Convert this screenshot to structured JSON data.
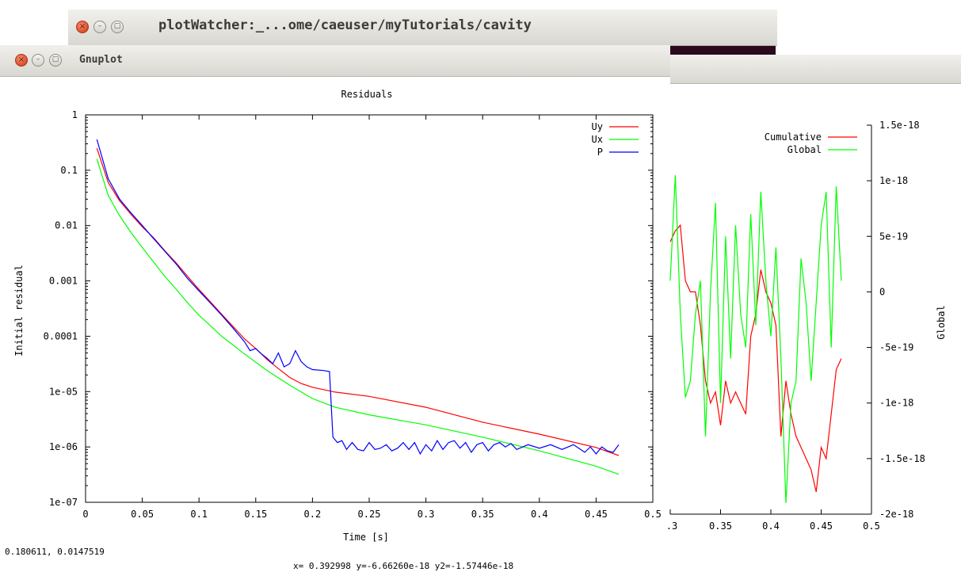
{
  "windows": {
    "back": {
      "title": "plotWatcher:_...ome/caeuser/myTutorials/cavity"
    },
    "front": {
      "title": "Gnuplot"
    }
  },
  "buttons": {
    "close": "×",
    "minimize": "–",
    "maximize": "▢"
  },
  "colors": {
    "series_red": "#ff0000",
    "series_green": "#00ff00",
    "series_blue": "#0000ff",
    "desktop": "#2b0a1e"
  },
  "status": {
    "mouse": "0.180611,  0.0147519",
    "coords": "x= 0.392998 y=-6.66260e-18 y2=-1.57446e-18"
  },
  "chart_data": [
    {
      "type": "line",
      "title": "Residuals",
      "xlabel": "Time [s]",
      "ylabel": "Initial residual",
      "yscale": "log",
      "xlim": [
        0,
        0.5
      ],
      "ylim": [
        1e-07,
        1
      ],
      "xticks": [
        "0",
        "0.05",
        "0.1",
        "0.15",
        "0.2",
        "0.25",
        "0.3",
        "0.35",
        "0.4",
        "0.45",
        "0.5"
      ],
      "yticks": [
        "1",
        "0.1",
        "0.01",
        "0.001",
        "0.0001",
        "1e-05",
        "1e-06",
        "1e-07"
      ],
      "legend_position": "top-right",
      "series": [
        {
          "name": "Uy",
          "color": "#ff0000",
          "points": [
            [
              0.01,
              0.25
            ],
            [
              0.02,
              0.06
            ],
            [
              0.03,
              0.028
            ],
            [
              0.04,
              0.016
            ],
            [
              0.05,
              0.0095
            ],
            [
              0.06,
              0.006
            ],
            [
              0.07,
              0.0035
            ],
            [
              0.08,
              0.0021
            ],
            [
              0.09,
              0.0012
            ],
            [
              0.1,
              0.0007
            ],
            [
              0.11,
              0.00042
            ],
            [
              0.12,
              0.00025
            ],
            [
              0.13,
              0.00015
            ],
            [
              0.14,
              9e-05
            ],
            [
              0.15,
              6e-05
            ],
            [
              0.16,
              3.8e-05
            ],
            [
              0.17,
              2.6e-05
            ],
            [
              0.18,
              1.8e-05
            ],
            [
              0.19,
              1.4e-05
            ],
            [
              0.2,
              1.2e-05
            ],
            [
              0.22,
              9.8e-06
            ],
            [
              0.25,
              8.2e-06
            ],
            [
              0.3,
              5.2e-06
            ],
            [
              0.35,
              2.8e-06
            ],
            [
              0.4,
              1.7e-06
            ],
            [
              0.45,
              9.8e-07
            ],
            [
              0.47,
              7e-07
            ]
          ]
        },
        {
          "name": "Ux",
          "color": "#00ff00",
          "points": [
            [
              0.01,
              0.16
            ],
            [
              0.02,
              0.035
            ],
            [
              0.03,
              0.015
            ],
            [
              0.04,
              0.0075
            ],
            [
              0.05,
              0.004
            ],
            [
              0.06,
              0.0022
            ],
            [
              0.07,
              0.0012
            ],
            [
              0.08,
              0.0007
            ],
            [
              0.09,
              0.0004
            ],
            [
              0.1,
              0.00024
            ],
            [
              0.12,
              0.0001
            ],
            [
              0.14,
              4.8e-05
            ],
            [
              0.16,
              2.4e-05
            ],
            [
              0.18,
              1.3e-05
            ],
            [
              0.2,
              7.5e-06
            ],
            [
              0.22,
              5.2e-06
            ],
            [
              0.25,
              3.8e-06
            ],
            [
              0.3,
              2.5e-06
            ],
            [
              0.35,
              1.5e-06
            ],
            [
              0.4,
              8.5e-07
            ],
            [
              0.45,
              4.5e-07
            ],
            [
              0.47,
              3.2e-07
            ]
          ]
        },
        {
          "name": "P",
          "color": "#0000ff",
          "points": [
            [
              0.01,
              0.36
            ],
            [
              0.02,
              0.07
            ],
            [
              0.03,
              0.03
            ],
            [
              0.04,
              0.017
            ],
            [
              0.05,
              0.01
            ],
            [
              0.06,
              0.0058
            ],
            [
              0.07,
              0.0034
            ],
            [
              0.08,
              0.002
            ],
            [
              0.09,
              0.0011
            ],
            [
              0.1,
              0.00066
            ],
            [
              0.11,
              0.0004
            ],
            [
              0.12,
              0.00024
            ],
            [
              0.13,
              0.00014
            ],
            [
              0.14,
              8e-05
            ],
            [
              0.145,
              5.5e-05
            ],
            [
              0.15,
              6e-05
            ],
            [
              0.155,
              4.8e-05
            ],
            [
              0.16,
              4e-05
            ],
            [
              0.165,
              3.2e-05
            ],
            [
              0.17,
              5e-05
            ],
            [
              0.175,
              2.8e-05
            ],
            [
              0.18,
              3.2e-05
            ],
            [
              0.185,
              5.5e-05
            ],
            [
              0.19,
              3.5e-05
            ],
            [
              0.195,
              2.8e-05
            ],
            [
              0.2,
              2.5e-05
            ],
            [
              0.21,
              2.4e-05
            ],
            [
              0.215,
              2.3e-05
            ],
            [
              0.218,
              1.5e-06
            ],
            [
              0.222,
              1.2e-06
            ],
            [
              0.226,
              1.3e-06
            ],
            [
              0.23,
              9e-07
            ],
            [
              0.235,
              1.2e-06
            ],
            [
              0.24,
              9e-07
            ],
            [
              0.245,
              8.5e-07
            ],
            [
              0.25,
              1.2e-06
            ],
            [
              0.255,
              9e-07
            ],
            [
              0.26,
              9.5e-07
            ],
            [
              0.265,
              1.1e-06
            ],
            [
              0.27,
              8.5e-07
            ],
            [
              0.275,
              9.5e-07
            ],
            [
              0.28,
              1.2e-06
            ],
            [
              0.285,
              9e-07
            ],
            [
              0.29,
              1.2e-06
            ],
            [
              0.295,
              7.5e-07
            ],
            [
              0.3,
              1.1e-06
            ],
            [
              0.305,
              8.5e-07
            ],
            [
              0.31,
              1.3e-06
            ],
            [
              0.315,
              9e-07
            ],
            [
              0.32,
              1.2e-06
            ],
            [
              0.325,
              1.3e-06
            ],
            [
              0.33,
              9.5e-07
            ],
            [
              0.335,
              1.2e-06
            ],
            [
              0.34,
              8e-07
            ],
            [
              0.345,
              1.1e-06
            ],
            [
              0.35,
              1.2e-06
            ],
            [
              0.355,
              8.5e-07
            ],
            [
              0.36,
              1.1e-06
            ],
            [
              0.365,
              1.2e-06
            ],
            [
              0.37,
              1e-06
            ],
            [
              0.375,
              1.15e-06
            ],
            [
              0.38,
              9e-07
            ],
            [
              0.39,
              1.1e-06
            ],
            [
              0.4,
              9.5e-07
            ],
            [
              0.41,
              1.1e-06
            ],
            [
              0.42,
              9e-07
            ],
            [
              0.43,
              1.1e-06
            ],
            [
              0.44,
              8e-07
            ],
            [
              0.445,
              1e-06
            ],
            [
              0.45,
              7.5e-07
            ],
            [
              0.455,
              1e-06
            ],
            [
              0.46,
              8.5e-07
            ],
            [
              0.465,
              8e-07
            ],
            [
              0.47,
              1.1e-06
            ]
          ]
        }
      ]
    },
    {
      "type": "line",
      "ylabel": "Global",
      "xlim": [
        0.3,
        0.5
      ],
      "ylim": [
        -2e-18,
        1.5e-18
      ],
      "xticks": [
        ".3",
        "0.35",
        "0.4",
        "0.45",
        "0.5"
      ],
      "yticks": [
        "1.5e-18",
        "1e-18",
        "5e-19",
        "0",
        "-5e-19",
        "-1e-18",
        "-1.5e-18",
        "-2e-18"
      ],
      "legend_position": "top-right",
      "series": [
        {
          "name": "Cumulative",
          "color": "#ff0000",
          "points": [
            [
              0.3,
              4.5e-19
            ],
            [
              0.305,
              5.5e-19
            ],
            [
              0.31,
              6e-19
            ],
            [
              0.315,
              1e-19
            ],
            [
              0.32,
              0
            ],
            [
              0.325,
              0
            ],
            [
              0.33,
              -3e-19
            ],
            [
              0.335,
              -8e-19
            ],
            [
              0.34,
              -1e-18
            ],
            [
              0.345,
              -9e-19
            ],
            [
              0.35,
              -1.2e-18
            ],
            [
              0.355,
              -8e-19
            ],
            [
              0.36,
              -1e-18
            ],
            [
              0.365,
              -9e-19
            ],
            [
              0.37,
              -1e-18
            ],
            [
              0.375,
              -1.1e-18
            ],
            [
              0.38,
              -4e-19
            ],
            [
              0.385,
              -2e-19
            ],
            [
              0.39,
              2e-19
            ],
            [
              0.395,
              0
            ],
            [
              0.4,
              -1e-19
            ],
            [
              0.405,
              -3e-19
            ],
            [
              0.41,
              -1.3e-18
            ],
            [
              0.415,
              -8e-19
            ],
            [
              0.42,
              -1.1e-18
            ],
            [
              0.425,
              -1.3e-18
            ],
            [
              0.43,
              -1.4e-18
            ],
            [
              0.435,
              -1.5e-18
            ],
            [
              0.44,
              -1.6e-18
            ],
            [
              0.445,
              -1.8e-18
            ],
            [
              0.45,
              -1.4e-18
            ],
            [
              0.455,
              -1.5e-18
            ],
            [
              0.46,
              -1.1e-18
            ],
            [
              0.465,
              -7e-19
            ],
            [
              0.47,
              -6e-19
            ]
          ]
        },
        {
          "name": "Global",
          "color": "#00ff00",
          "points": [
            [
              0.3,
              1e-19
            ],
            [
              0.305,
              1.05e-18
            ],
            [
              0.31,
              -2e-19
            ],
            [
              0.315,
              -9.5e-19
            ],
            [
              0.32,
              -8e-19
            ],
            [
              0.325,
              -2e-19
            ],
            [
              0.33,
              1e-19
            ],
            [
              0.335,
              -1.3e-18
            ],
            [
              0.34,
              0
            ],
            [
              0.345,
              8e-19
            ],
            [
              0.35,
              -1e-18
            ],
            [
              0.355,
              5e-19
            ],
            [
              0.36,
              -6e-19
            ],
            [
              0.365,
              6e-19
            ],
            [
              0.37,
              -2e-19
            ],
            [
              0.375,
              -5e-19
            ],
            [
              0.38,
              7e-19
            ],
            [
              0.385,
              -3e-19
            ],
            [
              0.39,
              9e-19
            ],
            [
              0.395,
              1e-19
            ],
            [
              0.4,
              -4e-19
            ],
            [
              0.405,
              4e-19
            ],
            [
              0.41,
              -6e-19
            ],
            [
              0.415,
              -1.9e-18
            ],
            [
              0.42,
              -1e-18
            ],
            [
              0.425,
              -8e-19
            ],
            [
              0.43,
              3e-19
            ],
            [
              0.435,
              -1e-19
            ],
            [
              0.44,
              -8e-19
            ],
            [
              0.445,
              -1e-19
            ],
            [
              0.45,
              6e-19
            ],
            [
              0.455,
              9e-19
            ],
            [
              0.46,
              -5e-19
            ],
            [
              0.465,
              9.5e-19
            ],
            [
              0.47,
              1e-19
            ]
          ]
        }
      ]
    }
  ]
}
